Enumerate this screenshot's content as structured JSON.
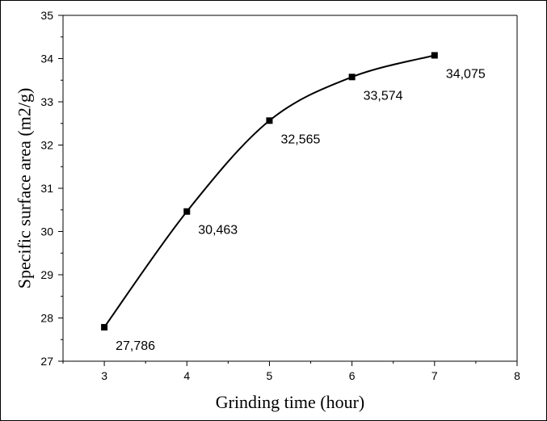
{
  "chart_data": {
    "type": "line",
    "title": "",
    "xlabel": "Grinding time (hour)",
    "ylabel": "Specific surface area (m2/g)",
    "xlim": [
      2.5,
      8
    ],
    "ylim": [
      27,
      35
    ],
    "xticks": [
      3,
      4,
      5,
      6,
      7,
      8
    ],
    "yticks": [
      27,
      28,
      29,
      30,
      31,
      32,
      33,
      34,
      35
    ],
    "grid": false,
    "series": [
      {
        "marker": "square",
        "color": "#000000",
        "x": [
          3,
          4,
          5,
          6,
          7
        ],
        "y": [
          27.786,
          30.463,
          32.565,
          33.574,
          34.075
        ],
        "labels": [
          "27,786",
          "30,463",
          "32,565",
          "33,574",
          "34,075"
        ]
      }
    ]
  }
}
